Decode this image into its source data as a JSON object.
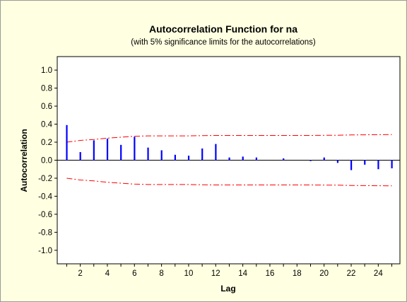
{
  "chart_data": {
    "type": "bar",
    "title": "Autocorrelation Function for na",
    "subtitle": "(with 5% significance limits for the autocorrelations)",
    "xlabel": "Lag",
    "ylabel": "Autocorrelation",
    "xlim": [
      0.3,
      25.6
    ],
    "ylim": [
      -1.15,
      1.15
    ],
    "xticks": [
      2,
      4,
      6,
      8,
      10,
      12,
      14,
      16,
      18,
      20,
      22,
      24
    ],
    "yticks": [
      -1.0,
      -0.8,
      -0.6,
      -0.4,
      -0.2,
      0.0,
      0.2,
      0.4,
      0.6,
      0.8,
      1.0
    ],
    "ytick_labels": [
      "-1.0",
      "-0.8",
      "-0.6",
      "-0.4",
      "-0.2",
      "0.0",
      "0.2",
      "0.4",
      "0.6",
      "0.8",
      "1.0"
    ],
    "lags": [
      1,
      2,
      3,
      4,
      5,
      6,
      7,
      8,
      9,
      10,
      11,
      12,
      13,
      14,
      15,
      16,
      17,
      18,
      19,
      20,
      21,
      22,
      23,
      24,
      25
    ],
    "acf": [
      0.39,
      0.09,
      0.22,
      0.24,
      0.17,
      0.26,
      0.14,
      0.11,
      0.06,
      0.05,
      0.13,
      0.18,
      0.03,
      0.04,
      0.03,
      0.0,
      0.02,
      0.0,
      -0.01,
      0.03,
      -0.03,
      -0.11,
      -0.05,
      -0.1,
      -0.09
    ],
    "upper_limit": [
      0.2,
      0.22,
      0.23,
      0.245,
      0.255,
      0.265,
      0.27,
      0.27,
      0.27,
      0.27,
      0.272,
      0.275,
      0.275,
      0.275,
      0.275,
      0.275,
      0.275,
      0.275,
      0.275,
      0.276,
      0.277,
      0.28,
      0.282,
      0.283,
      0.285
    ],
    "lower_limit": [
      -0.2,
      -0.22,
      -0.23,
      -0.245,
      -0.255,
      -0.265,
      -0.27,
      -0.27,
      -0.27,
      -0.27,
      -0.272,
      -0.275,
      -0.275,
      -0.275,
      -0.275,
      -0.275,
      -0.275,
      -0.275,
      -0.275,
      -0.276,
      -0.277,
      -0.28,
      -0.282,
      -0.283,
      -0.285
    ],
    "colors": {
      "bars": "#0000ff",
      "limits": "#ff0000",
      "background": "#ffffe1",
      "plot_area": "#ffffff"
    },
    "grid": false
  }
}
